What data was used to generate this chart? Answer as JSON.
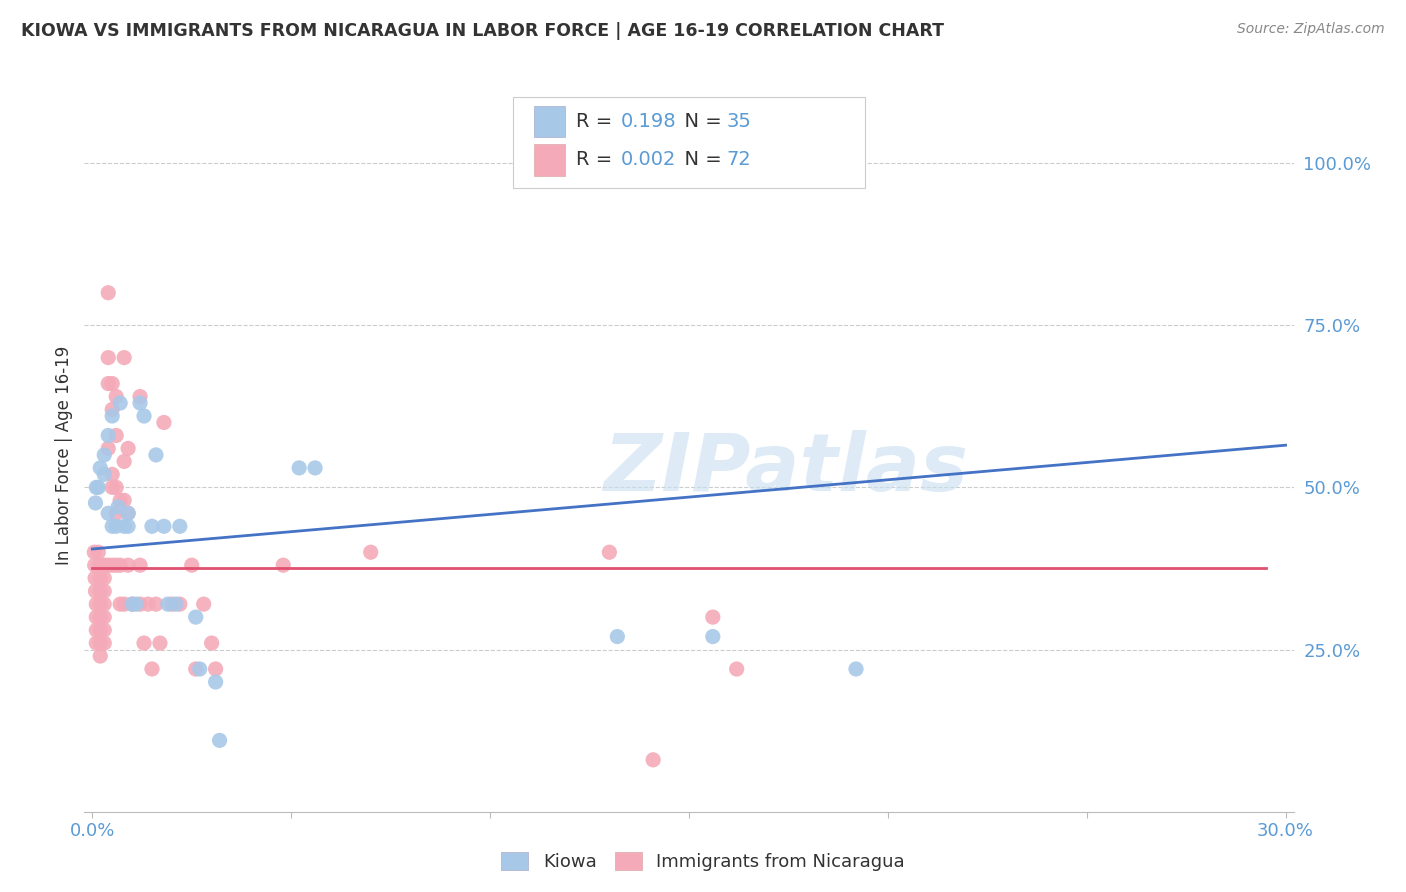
{
  "title": "KIOWA VS IMMIGRANTS FROM NICARAGUA IN LABOR FORCE | AGE 16-19 CORRELATION CHART",
  "source": "Source: ZipAtlas.com",
  "ylabel": "In Labor Force | Age 16-19",
  "right_yticks": [
    "100.0%",
    "75.0%",
    "50.0%",
    "25.0%"
  ],
  "right_ytick_vals": [
    1.0,
    0.75,
    0.5,
    0.25
  ],
  "legend_blue_R": "0.198",
  "legend_blue_N": "35",
  "legend_pink_R": "0.002",
  "legend_pink_N": "72",
  "blue_color": "#a8c8e8",
  "pink_color": "#f4aab8",
  "line_blue_color": "#4472c4",
  "line_pink_color": "#e05070",
  "watermark": "ZIPatlas",
  "blue_scatter": [
    [
      0.0008,
      0.476
    ],
    [
      0.001,
      0.5
    ],
    [
      0.0015,
      0.5
    ],
    [
      0.002,
      0.53
    ],
    [
      0.003,
      0.55
    ],
    [
      0.003,
      0.52
    ],
    [
      0.004,
      0.58
    ],
    [
      0.004,
      0.46
    ],
    [
      0.005,
      0.44
    ],
    [
      0.005,
      0.61
    ],
    [
      0.006,
      0.44
    ],
    [
      0.0065,
      0.47
    ],
    [
      0.007,
      0.63
    ],
    [
      0.008,
      0.44
    ],
    [
      0.009,
      0.44
    ],
    [
      0.009,
      0.46
    ],
    [
      0.01,
      0.32
    ],
    [
      0.011,
      0.32
    ],
    [
      0.012,
      0.63
    ],
    [
      0.013,
      0.61
    ],
    [
      0.015,
      0.44
    ],
    [
      0.016,
      0.55
    ],
    [
      0.018,
      0.44
    ],
    [
      0.019,
      0.32
    ],
    [
      0.021,
      0.32
    ],
    [
      0.022,
      0.44
    ],
    [
      0.026,
      0.3
    ],
    [
      0.027,
      0.22
    ],
    [
      0.031,
      0.2
    ],
    [
      0.032,
      0.11
    ],
    [
      0.052,
      0.53
    ],
    [
      0.056,
      0.53
    ],
    [
      0.132,
      0.27
    ],
    [
      0.156,
      0.27
    ],
    [
      0.192,
      0.22
    ]
  ],
  "pink_scatter": [
    [
      0.0005,
      0.4
    ],
    [
      0.0006,
      0.38
    ],
    [
      0.0007,
      0.36
    ],
    [
      0.0008,
      0.34
    ],
    [
      0.001,
      0.32
    ],
    [
      0.001,
      0.3
    ],
    [
      0.001,
      0.28
    ],
    [
      0.001,
      0.26
    ],
    [
      0.0015,
      0.4
    ],
    [
      0.0018,
      0.38
    ],
    [
      0.002,
      0.36
    ],
    [
      0.002,
      0.34
    ],
    [
      0.002,
      0.32
    ],
    [
      0.002,
      0.3
    ],
    [
      0.002,
      0.28
    ],
    [
      0.002,
      0.26
    ],
    [
      0.002,
      0.24
    ],
    [
      0.003,
      0.38
    ],
    [
      0.003,
      0.36
    ],
    [
      0.003,
      0.34
    ],
    [
      0.003,
      0.32
    ],
    [
      0.003,
      0.3
    ],
    [
      0.003,
      0.28
    ],
    [
      0.003,
      0.26
    ],
    [
      0.004,
      0.8
    ],
    [
      0.004,
      0.7
    ],
    [
      0.004,
      0.66
    ],
    [
      0.004,
      0.56
    ],
    [
      0.004,
      0.38
    ],
    [
      0.005,
      0.66
    ],
    [
      0.005,
      0.62
    ],
    [
      0.005,
      0.52
    ],
    [
      0.005,
      0.5
    ],
    [
      0.005,
      0.38
    ],
    [
      0.006,
      0.64
    ],
    [
      0.006,
      0.58
    ],
    [
      0.006,
      0.5
    ],
    [
      0.006,
      0.46
    ],
    [
      0.006,
      0.38
    ],
    [
      0.007,
      0.48
    ],
    [
      0.007,
      0.38
    ],
    [
      0.007,
      0.32
    ],
    [
      0.008,
      0.7
    ],
    [
      0.008,
      0.54
    ],
    [
      0.008,
      0.48
    ],
    [
      0.008,
      0.32
    ],
    [
      0.009,
      0.56
    ],
    [
      0.009,
      0.46
    ],
    [
      0.009,
      0.38
    ],
    [
      0.01,
      0.32
    ],
    [
      0.012,
      0.64
    ],
    [
      0.012,
      0.38
    ],
    [
      0.012,
      0.32
    ],
    [
      0.013,
      0.26
    ],
    [
      0.014,
      0.32
    ],
    [
      0.015,
      0.22
    ],
    [
      0.016,
      0.32
    ],
    [
      0.017,
      0.26
    ],
    [
      0.018,
      0.6
    ],
    [
      0.02,
      0.32
    ],
    [
      0.022,
      0.32
    ],
    [
      0.025,
      0.38
    ],
    [
      0.026,
      0.22
    ],
    [
      0.028,
      0.32
    ],
    [
      0.03,
      0.26
    ],
    [
      0.031,
      0.22
    ],
    [
      0.048,
      0.38
    ],
    [
      0.07,
      0.4
    ],
    [
      0.13,
      0.4
    ],
    [
      0.141,
      0.08
    ],
    [
      0.156,
      0.3
    ],
    [
      0.162,
      0.22
    ]
  ],
  "blue_line_x": [
    0.0,
    0.3
  ],
  "blue_line_y": [
    0.405,
    0.565
  ],
  "pink_line_x": [
    0.0,
    0.295
  ],
  "pink_line_y": [
    0.375,
    0.375
  ],
  "xlim": [
    -0.002,
    0.302
  ],
  "ylim": [
    0.0,
    1.1
  ],
  "grid_color": "#cccccc",
  "text_color": "#333333",
  "axis_color": "#5b9bd5",
  "title_fontsize": 12.5,
  "tick_fontsize": 13,
  "legend_fontsize": 14,
  "source_fontsize": 10
}
